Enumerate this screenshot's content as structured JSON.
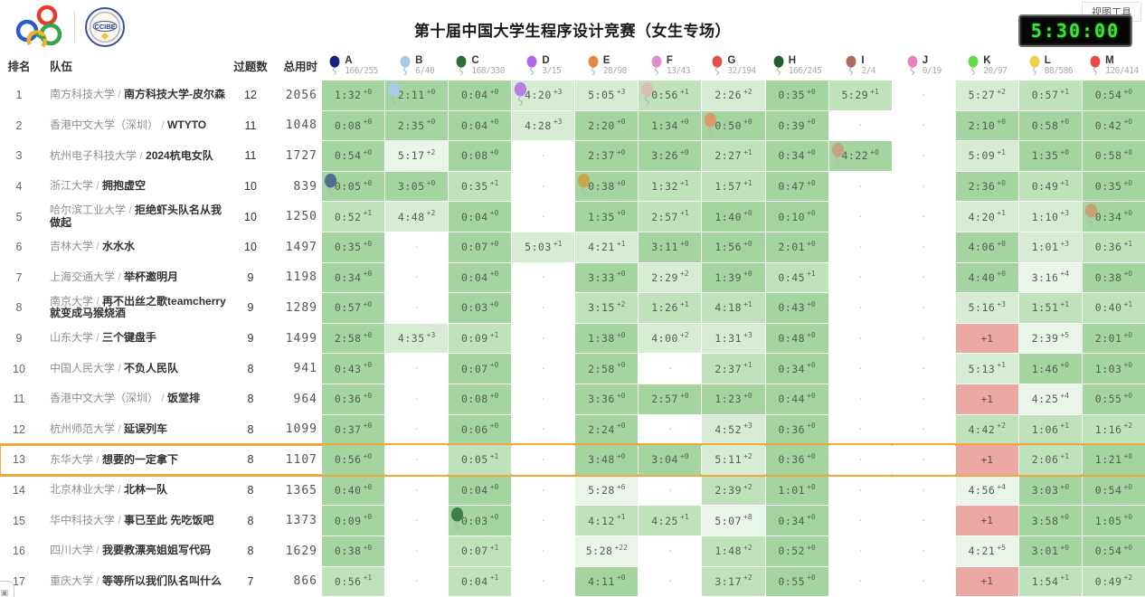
{
  "header": {
    "title": "第十届中国大学生程序设计竞赛（女生专场）",
    "view_tools_label": "视图工具",
    "timer": "5:30:00"
  },
  "table": {
    "col_rank": "排名",
    "col_team": "队伍",
    "col_solved": "过题数",
    "col_penalty": "总用时",
    "separator": " / ",
    "empty_marker": "·"
  },
  "colors": {
    "solved_dark": "#a4d49f",
    "solved_medium": "#c0e2bb",
    "solved_light": "#d7edd3",
    "solved_faint": "#e9f5e6",
    "failed": "#eca9a4",
    "highlight_border": "#f2a83a",
    "timer_green": "#3fe337"
  },
  "problems": [
    {
      "id": "A",
      "color": "#15207f",
      "stat": "166/255"
    },
    {
      "id": "B",
      "color": "#a6c9ea",
      "stat": "6/40"
    },
    {
      "id": "C",
      "color": "#2d6e35",
      "stat": "168/330"
    },
    {
      "id": "D",
      "color": "#b169e8",
      "stat": "3/15"
    },
    {
      "id": "E",
      "color": "#de8a3c",
      "stat": "28/98"
    },
    {
      "id": "F",
      "color": "#dd8fcc",
      "stat": "13/43"
    },
    {
      "id": "G",
      "color": "#e4504a",
      "stat": "32/194"
    },
    {
      "id": "H",
      "color": "#235c26",
      "stat": "166/245"
    },
    {
      "id": "I",
      "color": "#b06a5e",
      "stat": "2/4"
    },
    {
      "id": "J",
      "color": "#ee7fc0",
      "stat": "0/19"
    },
    {
      "id": "K",
      "color": "#66d94e",
      "stat": "20/97"
    },
    {
      "id": "L",
      "color": "#ecd04e",
      "stat": "88/586"
    },
    {
      "id": "M",
      "color": "#ea4a42",
      "stat": "120/414"
    }
  ],
  "rows": [
    {
      "rank": 1,
      "school": "南方科技大学",
      "team": "南方科技大学-皮尔森",
      "solved": 12,
      "penalty": 2056,
      "highlight": false,
      "cells": [
        {
          "v": "1:32",
          "p": "+0",
          "o": "d"
        },
        {
          "v": "2:11",
          "p": "+0",
          "o": "d",
          "b": "#a8cbe8"
        },
        {
          "v": "0:04",
          "p": "+0",
          "o": "d"
        },
        {
          "v": "4:20",
          "p": "+3",
          "o": "l",
          "b": "#b57fe3"
        },
        {
          "v": "5:05",
          "p": "+3",
          "o": "l"
        },
        {
          "v": "0:56",
          "p": "+1",
          "o": "m",
          "b": "#d9bfae"
        },
        {
          "v": "2:26",
          "p": "+2",
          "o": "l"
        },
        {
          "v": "0:35",
          "p": "+0",
          "o": "d"
        },
        {
          "v": "5:29",
          "p": "+1",
          "o": "m"
        },
        null,
        {
          "v": "5:27",
          "p": "+2",
          "o": "l"
        },
        {
          "v": "0:57",
          "p": "+1",
          "o": "m"
        },
        {
          "v": "0:54",
          "p": "+0",
          "o": "d"
        }
      ]
    },
    {
      "rank": 2,
      "school": "香港中文大学（深圳）",
      "team": "WTYTO",
      "solved": 11,
      "penalty": 1048,
      "highlight": false,
      "cells": [
        {
          "v": "0:08",
          "p": "+0",
          "o": "d"
        },
        {
          "v": "2:35",
          "p": "+0",
          "o": "d"
        },
        {
          "v": "0:04",
          "p": "+0",
          "o": "d"
        },
        {
          "v": "4:28",
          "p": "+3",
          "o": "l"
        },
        {
          "v": "2:20",
          "p": "+0",
          "o": "d"
        },
        {
          "v": "1:34",
          "p": "+0",
          "o": "d"
        },
        {
          "v": "0:50",
          "p": "+0",
          "o": "d",
          "b": "#d99a6c"
        },
        {
          "v": "0:39",
          "p": "+0",
          "o": "d"
        },
        null,
        null,
        {
          "v": "2:10",
          "p": "+0",
          "o": "d"
        },
        {
          "v": "0:58",
          "p": "+0",
          "o": "d"
        },
        {
          "v": "0:42",
          "p": "+0",
          "o": "d"
        }
      ]
    },
    {
      "rank": 3,
      "school": "杭州电子科技大学",
      "team": "2024杭电女队",
      "solved": 11,
      "penalty": 1727,
      "highlight": false,
      "cells": [
        {
          "v": "0:54",
          "p": "+0",
          "o": "d"
        },
        {
          "v": "5:17",
          "p": "+2",
          "o": "vl"
        },
        {
          "v": "0:08",
          "p": "+0",
          "o": "d"
        },
        null,
        {
          "v": "2:37",
          "p": "+0",
          "o": "d"
        },
        {
          "v": "3:26",
          "p": "+0",
          "o": "d"
        },
        {
          "v": "2:27",
          "p": "+1",
          "o": "m"
        },
        {
          "v": "0:34",
          "p": "+0",
          "o": "d"
        },
        {
          "v": "4:22",
          "p": "+0",
          "o": "d",
          "b": "#c4a382"
        },
        null,
        {
          "v": "5:09",
          "p": "+1",
          "o": "l"
        },
        {
          "v": "1:35",
          "p": "+0",
          "o": "d"
        },
        {
          "v": "0:58",
          "p": "+0",
          "o": "d"
        }
      ]
    },
    {
      "rank": 4,
      "school": "浙江大学",
      "team": "拥抱虚空",
      "solved": 10,
      "penalty": 839,
      "highlight": false,
      "cells": [
        {
          "v": "0:05",
          "p": "+0",
          "o": "d",
          "b": "#51708f"
        },
        {
          "v": "3:05",
          "p": "+0",
          "o": "d"
        },
        {
          "v": "0:35",
          "p": "+1",
          "o": "m"
        },
        null,
        {
          "v": "0:38",
          "p": "+0",
          "o": "d",
          "b": "#c9a84c"
        },
        {
          "v": "1:32",
          "p": "+1",
          "o": "m"
        },
        {
          "v": "1:57",
          "p": "+1",
          "o": "m"
        },
        {
          "v": "0:47",
          "p": "+0",
          "o": "d"
        },
        null,
        null,
        {
          "v": "2:36",
          "p": "+0",
          "o": "d"
        },
        {
          "v": "0:49",
          "p": "+1",
          "o": "m"
        },
        {
          "v": "0:35",
          "p": "+0",
          "o": "d"
        }
      ]
    },
    {
      "rank": 5,
      "school": "哈尔滨工业大学",
      "team": "拒绝虾头队名从我做起",
      "solved": 10,
      "penalty": 1250,
      "highlight": false,
      "cells": [
        {
          "v": "0:52",
          "p": "+1",
          "o": "m"
        },
        {
          "v": "4:48",
          "p": "+2",
          "o": "l"
        },
        {
          "v": "0:04",
          "p": "+0",
          "o": "d"
        },
        null,
        {
          "v": "1:35",
          "p": "+0",
          "o": "d"
        },
        {
          "v": "2:57",
          "p": "+1",
          "o": "m"
        },
        {
          "v": "1:40",
          "p": "+0",
          "o": "d"
        },
        {
          "v": "0:10",
          "p": "+0",
          "o": "d"
        },
        null,
        null,
        {
          "v": "4:20",
          "p": "+1",
          "o": "l"
        },
        {
          "v": "1:10",
          "p": "+3",
          "o": "l"
        },
        {
          "v": "0:34",
          "p": "+0",
          "o": "d",
          "b": "#c9a176"
        }
      ]
    },
    {
      "rank": 6,
      "school": "吉林大学",
      "team": "水水水",
      "solved": 10,
      "penalty": 1497,
      "highlight": false,
      "cells": [
        {
          "v": "0:35",
          "p": "+0",
          "o": "d"
        },
        null,
        {
          "v": "0:07",
          "p": "+0",
          "o": "d"
        },
        {
          "v": "5:03",
          "p": "+1",
          "o": "l"
        },
        {
          "v": "4:21",
          "p": "+1",
          "o": "l"
        },
        {
          "v": "3:11",
          "p": "+0",
          "o": "d"
        },
        {
          "v": "1:56",
          "p": "+0",
          "o": "d"
        },
        {
          "v": "2:01",
          "p": "+0",
          "o": "d"
        },
        null,
        null,
        {
          "v": "4:06",
          "p": "+0",
          "o": "d"
        },
        {
          "v": "1:01",
          "p": "+3",
          "o": "l"
        },
        {
          "v": "0:36",
          "p": "+1",
          "o": "m"
        }
      ]
    },
    {
      "rank": 7,
      "school": "上海交通大学",
      "team": "举杯邀明月",
      "solved": 9,
      "penalty": 1198,
      "highlight": false,
      "cells": [
        {
          "v": "0:34",
          "p": "+0",
          "o": "d"
        },
        null,
        {
          "v": "0:04",
          "p": "+0",
          "o": "d"
        },
        null,
        {
          "v": "3:33",
          "p": "+0",
          "o": "d"
        },
        {
          "v": "2:29",
          "p": "+2",
          "o": "l"
        },
        {
          "v": "1:39",
          "p": "+0",
          "o": "d"
        },
        {
          "v": "0:45",
          "p": "+1",
          "o": "m"
        },
        null,
        null,
        {
          "v": "4:40",
          "p": "+0",
          "o": "d"
        },
        {
          "v": "3:16",
          "p": "+4",
          "o": "vl"
        },
        {
          "v": "0:38",
          "p": "+0",
          "o": "d"
        }
      ]
    },
    {
      "rank": 8,
      "school": "南京大学",
      "team": "再不出丝之歌teamcherry就变成马猴烧酒",
      "solved": 9,
      "penalty": 1289,
      "highlight": false,
      "cells": [
        {
          "v": "0:57",
          "p": "+0",
          "o": "d"
        },
        null,
        {
          "v": "0:03",
          "p": "+0",
          "o": "d"
        },
        null,
        {
          "v": "3:15",
          "p": "+2",
          "o": "m"
        },
        {
          "v": "1:26",
          "p": "+1",
          "o": "m"
        },
        {
          "v": "4:18",
          "p": "+1",
          "o": "m"
        },
        {
          "v": "0:43",
          "p": "+0",
          "o": "d"
        },
        null,
        null,
        {
          "v": "5:16",
          "p": "+3",
          "o": "l"
        },
        {
          "v": "1:51",
          "p": "+1",
          "o": "m"
        },
        {
          "v": "0:40",
          "p": "+1",
          "o": "m"
        }
      ]
    },
    {
      "rank": 9,
      "school": "山东大学",
      "team": "三个键盘手",
      "solved": 9,
      "penalty": 1499,
      "highlight": false,
      "cells": [
        {
          "v": "2:58",
          "p": "+0",
          "o": "d"
        },
        {
          "v": "4:35",
          "p": "+3",
          "o": "l"
        },
        {
          "v": "0:09",
          "p": "+1",
          "o": "m"
        },
        null,
        {
          "v": "1:38",
          "p": "+0",
          "o": "d"
        },
        {
          "v": "4:00",
          "p": "+2",
          "o": "l"
        },
        {
          "v": "1:31",
          "p": "+3",
          "o": "l"
        },
        {
          "v": "0:48",
          "p": "+0",
          "o": "d"
        },
        null,
        null,
        {
          "f": "+1"
        },
        {
          "v": "2:39",
          "p": "+5",
          "o": "vl"
        },
        {
          "v": "2:01",
          "p": "+0",
          "o": "d"
        }
      ]
    },
    {
      "rank": 10,
      "school": "中国人民大学",
      "team": "不负人民队",
      "solved": 8,
      "penalty": 941,
      "highlight": false,
      "cells": [
        {
          "v": "0:43",
          "p": "+0",
          "o": "d"
        },
        null,
        {
          "v": "0:07",
          "p": "+0",
          "o": "d"
        },
        null,
        {
          "v": "2:58",
          "p": "+0",
          "o": "d"
        },
        null,
        {
          "v": "2:37",
          "p": "+1",
          "o": "m"
        },
        {
          "v": "0:34",
          "p": "+0",
          "o": "d"
        },
        null,
        null,
        {
          "v": "5:13",
          "p": "+1",
          "o": "l"
        },
        {
          "v": "1:46",
          "p": "+0",
          "o": "d"
        },
        {
          "v": "1:03",
          "p": "+0",
          "o": "d"
        }
      ]
    },
    {
      "rank": 11,
      "school": "香港中文大学（深圳）",
      "team": "饭堂排",
      "solved": 8,
      "penalty": 964,
      "highlight": false,
      "cells": [
        {
          "v": "0:36",
          "p": "+0",
          "o": "d"
        },
        null,
        {
          "v": "0:08",
          "p": "+0",
          "o": "d"
        },
        null,
        {
          "v": "3:36",
          "p": "+0",
          "o": "d"
        },
        {
          "v": "2:57",
          "p": "+0",
          "o": "d"
        },
        {
          "v": "1:23",
          "p": "+0",
          "o": "d"
        },
        {
          "v": "0:44",
          "p": "+0",
          "o": "d"
        },
        null,
        null,
        {
          "f": "+1"
        },
        {
          "v": "4:25",
          "p": "+4",
          "o": "vl"
        },
        {
          "v": "0:55",
          "p": "+0",
          "o": "d"
        }
      ]
    },
    {
      "rank": 12,
      "school": "杭州师范大学",
      "team": "延误列车",
      "solved": 8,
      "penalty": 1099,
      "highlight": false,
      "cells": [
        {
          "v": "0:37",
          "p": "+0",
          "o": "d"
        },
        null,
        {
          "v": "0:06",
          "p": "+0",
          "o": "d"
        },
        null,
        {
          "v": "2:24",
          "p": "+0",
          "o": "d"
        },
        null,
        {
          "v": "4:52",
          "p": "+3",
          "o": "l"
        },
        {
          "v": "0:36",
          "p": "+0",
          "o": "d"
        },
        null,
        null,
        {
          "v": "4:42",
          "p": "+2",
          "o": "m"
        },
        {
          "v": "1:06",
          "p": "+1",
          "o": "m"
        },
        {
          "v": "1:16",
          "p": "+2",
          "o": "m"
        }
      ]
    },
    {
      "rank": 13,
      "school": "东华大学",
      "team": "想要的一定拿下",
      "solved": 8,
      "penalty": 1107,
      "highlight": true,
      "cells": [
        {
          "v": "0:56",
          "p": "+0",
          "o": "d"
        },
        null,
        {
          "v": "0:05",
          "p": "+1",
          "o": "m"
        },
        null,
        {
          "v": "3:48",
          "p": "+0",
          "o": "d"
        },
        {
          "v": "3:04",
          "p": "+0",
          "o": "d"
        },
        {
          "v": "5:11",
          "p": "+2",
          "o": "l"
        },
        {
          "v": "0:36",
          "p": "+0",
          "o": "d"
        },
        null,
        null,
        {
          "f": "+1"
        },
        {
          "v": "2:06",
          "p": "+1",
          "o": "m"
        },
        {
          "v": "1:21",
          "p": "+0",
          "o": "d"
        }
      ]
    },
    {
      "rank": 14,
      "school": "北京林业大学",
      "team": "北林一队",
      "solved": 8,
      "penalty": 1365,
      "highlight": false,
      "cells": [
        {
          "v": "0:40",
          "p": "+0",
          "o": "d"
        },
        null,
        {
          "v": "0:04",
          "p": "+0",
          "o": "d"
        },
        null,
        {
          "v": "5:28",
          "p": "+6",
          "o": "vl"
        },
        null,
        {
          "v": "2:39",
          "p": "+2",
          "o": "m"
        },
        {
          "v": "1:01",
          "p": "+0",
          "o": "d"
        },
        null,
        null,
        {
          "v": "4:56",
          "p": "+4",
          "o": "vl"
        },
        {
          "v": "3:03",
          "p": "+0",
          "o": "d"
        },
        {
          "v": "0:54",
          "p": "+0",
          "o": "d"
        }
      ]
    },
    {
      "rank": 15,
      "school": "华中科技大学",
      "team": "事已至此 先吃饭吧",
      "solved": 8,
      "penalty": 1373,
      "highlight": false,
      "cells": [
        {
          "v": "0:09",
          "p": "+0",
          "o": "d"
        },
        null,
        {
          "v": "0:03",
          "p": "+0",
          "o": "d",
          "b": "#3f7d4a"
        },
        null,
        {
          "v": "4:12",
          "p": "+1",
          "o": "m"
        },
        {
          "v": "4:25",
          "p": "+1",
          "o": "m"
        },
        {
          "v": "5:07",
          "p": "+8",
          "o": "vl"
        },
        {
          "v": "0:34",
          "p": "+0",
          "o": "d"
        },
        null,
        null,
        {
          "f": "+1"
        },
        {
          "v": "3:58",
          "p": "+0",
          "o": "d"
        },
        {
          "v": "1:05",
          "p": "+0",
          "o": "d"
        }
      ]
    },
    {
      "rank": 16,
      "school": "四川大学",
      "team": "我要教漂亮姐姐写代码",
      "solved": 8,
      "penalty": 1629,
      "highlight": false,
      "cells": [
        {
          "v": "0:38",
          "p": "+0",
          "o": "d"
        },
        null,
        {
          "v": "0:07",
          "p": "+1",
          "o": "m"
        },
        null,
        {
          "v": "5:28",
          "p": "+22",
          "o": "vl"
        },
        null,
        {
          "v": "1:48",
          "p": "+2",
          "o": "m"
        },
        {
          "v": "0:52",
          "p": "+0",
          "o": "d"
        },
        null,
        null,
        {
          "v": "4:21",
          "p": "+5",
          "o": "vl"
        },
        {
          "v": "3:01",
          "p": "+0",
          "o": "d"
        },
        {
          "v": "0:54",
          "p": "+0",
          "o": "d"
        }
      ]
    },
    {
      "rank": 17,
      "school": "重庆大学",
      "team": "等等所以我们队名叫什么",
      "solved": 7,
      "penalty": 866,
      "highlight": false,
      "cells": [
        {
          "v": "0:56",
          "p": "+1",
          "o": "m"
        },
        null,
        {
          "v": "0:04",
          "p": "+1",
          "o": "m"
        },
        null,
        {
          "v": "4:11",
          "p": "+0",
          "o": "d"
        },
        null,
        {
          "v": "3:17",
          "p": "+2",
          "o": "m"
        },
        {
          "v": "0:55",
          "p": "+0",
          "o": "d"
        },
        null,
        null,
        {
          "f": "+1"
        },
        {
          "v": "1:54",
          "p": "+1",
          "o": "m"
        },
        {
          "v": "0:49",
          "p": "+2",
          "o": "m"
        }
      ]
    }
  ]
}
